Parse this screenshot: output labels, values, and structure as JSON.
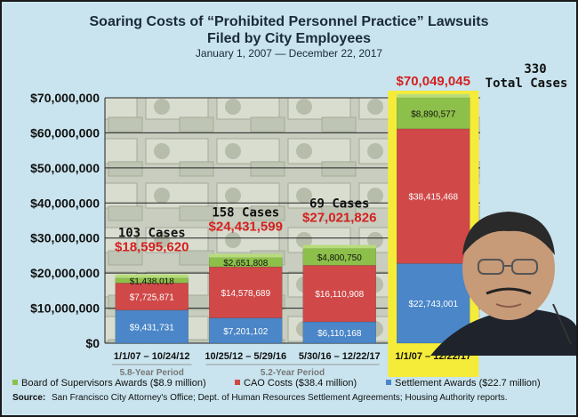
{
  "chart_data": {
    "type": "bar",
    "stacked": true,
    "title": "Soaring Costs of “Prohibited Personnel Practice” Lawsuits",
    "title_line2": "Filed by City Employees",
    "subtitle": "January 1, 2007 — December 22, 2017",
    "ylim": [
      0,
      70000000
    ],
    "yticks": [
      "$0",
      "$10,000,000",
      "$20,000,000",
      "$30,000,000",
      "$40,000,000",
      "$50,000,000",
      "$60,000,000",
      "$70,000,000"
    ],
    "categories": [
      "1/1/07 – 10/24/12",
      "10/25/12 – 5/29/16",
      "5/30/16 – 12/22/17",
      "1/1/07 – 12/22/17"
    ],
    "period_labels": [
      "5.8-Year Period",
      "5.2-Year Period"
    ],
    "series": [
      {
        "name": "Settlement Awards ($22.7 million)",
        "color": "#4a86c8",
        "values": [
          9431731,
          7201102,
          6110168,
          22743001
        ],
        "labels": [
          "$9,431,731",
          "$7,201,102",
          "$6,110,168",
          "$22,743,001"
        ]
      },
      {
        "name": "CAO Costs ($38.4 million)",
        "color": "#d04848",
        "values": [
          7725871,
          14578689,
          16110908,
          38415468
        ],
        "labels": [
          "$7,725,871",
          "$14,578,689",
          "$16,110,908",
          "$38,415,468"
        ]
      },
      {
        "name": "Board of Supervisors Awards ($8.9 million)",
        "color": "#8dc04a",
        "values": [
          1438018,
          2651808,
          4800750,
          8890577
        ],
        "labels": [
          "$1,438,018",
          "$2,651,808",
          "$4,800,750",
          "$8,890,577"
        ]
      }
    ],
    "annotations": {
      "cases": [
        "103 Cases",
        "158 Cases",
        "69 Cases"
      ],
      "totals": [
        "$18,595,620",
        "$24,431,599",
        "$27,021,826",
        "$70,049,045"
      ],
      "grand_total_cases": "330",
      "grand_total_label": "Total Cases"
    },
    "highlight_color": "#f5ec3a",
    "legend_position": "bottom",
    "grid": true
  },
  "source": {
    "label": "Source:",
    "text": "San Francisco City Attorney's Office; Dept. of Human Resources Settlement Agreements; Housing Authority reports."
  }
}
